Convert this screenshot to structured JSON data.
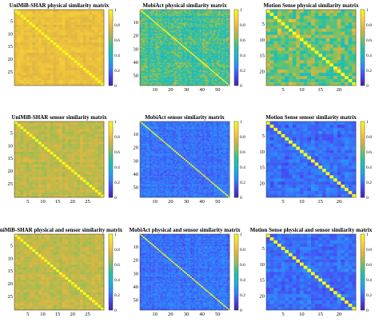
{
  "colormap": [
    "#3e26a8",
    "#4748f4",
    "#2d8cfc",
    "#1ab5d6",
    "#2ac29e",
    "#8ebf56",
    "#e1b541",
    "#fcd535",
    "#f9fb15"
  ],
  "chart_data": [
    {
      "type": "heatmap",
      "title": "UniMiB-SHAR physical similarity matrix",
      "n": 30,
      "y_ticks": [
        5,
        10,
        15,
        20,
        25
      ],
      "x_ticks": [],
      "colorbar_ticks": [
        "1",
        "0.8",
        "0.6",
        "0.4",
        "0.2",
        "0"
      ],
      "clim": [
        0,
        1
      ],
      "diagonal_value": 1.0,
      "offdiag_range": [
        0.72,
        0.86
      ],
      "pattern": "mostly uniform yellow with faint block structure"
    },
    {
      "type": "heatmap",
      "title": "MobiAct physical similarity matrix",
      "n": 57,
      "y_ticks": [
        10,
        20,
        30,
        40,
        50
      ],
      "x_ticks": [
        10,
        20,
        30,
        40,
        50
      ],
      "colorbar_ticks": [
        "1",
        "0.8",
        "0.6",
        "0.4",
        "0.2",
        "0"
      ],
      "clim": [
        0,
        1
      ],
      "diagonal_value": 1.0,
      "offdiag_range": [
        0.3,
        0.75
      ],
      "pattern": "mixed teal/green/yellow with structured bands"
    },
    {
      "type": "heatmap",
      "title": "Motion Sense physical similarity matrix",
      "n": 24,
      "y_ticks": [
        5,
        10,
        15,
        20
      ],
      "x_ticks": [
        5,
        10,
        15,
        20
      ],
      "colorbar_ticks": [
        "1",
        "0.8",
        "0.6",
        "0.4",
        "0.2",
        "0"
      ],
      "clim": [
        0,
        1
      ],
      "diagonal_value": 1.0,
      "offdiag_range": [
        0.35,
        0.85
      ],
      "pattern": "mixed teal/green/yellow with structured bands"
    },
    {
      "type": "heatmap",
      "title": "UniMiB-SHAR sensor similarity matrix",
      "n": 30,
      "y_ticks": [
        5,
        10,
        15,
        20,
        25
      ],
      "x_ticks": [
        5,
        10,
        15,
        20,
        25
      ],
      "colorbar_ticks": [
        "1",
        "0.8",
        "0.6",
        "0.4",
        "0.2",
        "0"
      ],
      "clim": [
        0,
        1
      ],
      "diagonal_value": 1.0,
      "offdiag_range": [
        0.62,
        0.78
      ],
      "pattern": "green-yellow with bright diagonal"
    },
    {
      "type": "heatmap",
      "title": "MobiAct sensor similarity matrix",
      "n": 57,
      "y_ticks": [
        10,
        20,
        30,
        40,
        50
      ],
      "x_ticks": [
        10,
        20,
        30,
        40,
        50
      ],
      "colorbar_ticks": [
        "1",
        "0.8",
        "0.6",
        "0.4",
        "0.2",
        "0"
      ],
      "clim": [
        0,
        1
      ],
      "diagonal_value": 1.0,
      "offdiag_range": [
        0.1,
        0.3
      ],
      "pattern": "blue with bright diagonal and faint bands"
    },
    {
      "type": "heatmap",
      "title": "Motion Sense sensor similarity matrix",
      "n": 24,
      "y_ticks": [
        5,
        10,
        15,
        20
      ],
      "x_ticks": [
        5,
        10,
        15,
        20
      ],
      "colorbar_ticks": [
        "1",
        "0.8",
        "0.6",
        "0.4",
        "0.2",
        "0"
      ],
      "clim": [
        0,
        1
      ],
      "diagonal_value": 1.0,
      "offdiag_range": [
        0.1,
        0.3
      ],
      "pattern": "blue with bright diagonal"
    },
    {
      "type": "heatmap",
      "title": "UniMiB-SHAR physical and sensor similarity matrix",
      "n": 30,
      "y_ticks": [
        5,
        10,
        15,
        20,
        25
      ],
      "x_ticks": [
        5,
        10,
        15,
        20,
        25
      ],
      "colorbar_ticks": [
        "1",
        "0.8",
        "0.6",
        "0.4",
        "0.2",
        "0"
      ],
      "clim": [
        0,
        1
      ],
      "diagonal_value": 1.0,
      "offdiag_range": [
        0.62,
        0.78
      ],
      "pattern": "green-yellow with bright diagonal"
    },
    {
      "type": "heatmap",
      "title": "MobiAct physical and sensor similarity matrix",
      "n": 57,
      "y_ticks": [
        10,
        20,
        30,
        40,
        50
      ],
      "x_ticks": [
        10,
        20,
        30,
        40,
        50
      ],
      "colorbar_ticks": [
        "1",
        "0.8",
        "0.6",
        "0.4",
        "0.2",
        "0"
      ],
      "clim": [
        0,
        1
      ],
      "diagonal_value": 1.0,
      "offdiag_range": [
        0.1,
        0.3
      ],
      "pattern": "blue with bright diagonal and faint bands"
    },
    {
      "type": "heatmap",
      "title": "Motion Sense physical and sensor similarity matrix",
      "n": 24,
      "y_ticks": [
        5,
        10,
        15,
        20
      ],
      "x_ticks": [
        5,
        10,
        15,
        20
      ],
      "colorbar_ticks": [
        "1",
        "0.8",
        "0.6",
        "0.4",
        "0.2",
        "0"
      ],
      "clim": [
        0,
        1
      ],
      "diagonal_value": 1.0,
      "offdiag_range": [
        0.1,
        0.3
      ],
      "pattern": "blue with bright diagonal"
    }
  ]
}
